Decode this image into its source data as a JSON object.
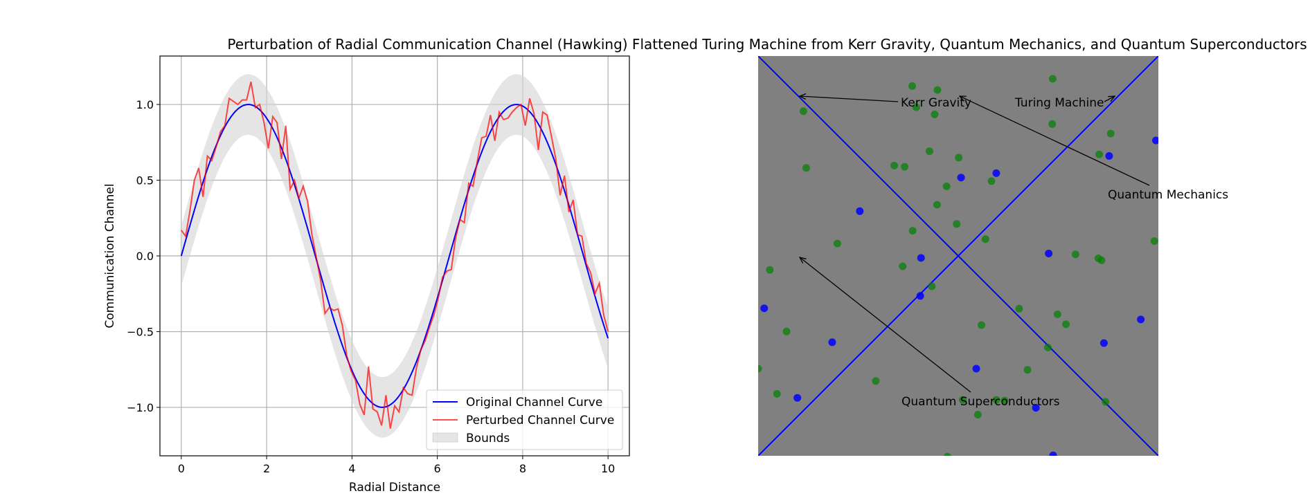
{
  "title": "Perturbation of Radial Communication Channel (Hawking) Flattened Turing Machine from Kerr Gravity, Quantum Mechanics, and Quantum Superconductors",
  "chart_data": [
    {
      "type": "line",
      "xlabel": "Radial Distance",
      "ylabel": "Communication Channel",
      "xlim": [
        -0.5,
        10.5
      ],
      "ylim": [
        -1.32,
        1.32
      ],
      "xticks": [
        0,
        2,
        4,
        6,
        8,
        10
      ],
      "yticks": [
        -1.0,
        -0.5,
        0.0,
        0.5,
        1.0
      ],
      "xtick_labels": [
        "0",
        "2",
        "4",
        "6",
        "8",
        "10"
      ],
      "ytick_labels": [
        "−1.0",
        "−0.5",
        "0.0",
        "0.5",
        "1.0"
      ],
      "grid": true,
      "legend": "lower-right",
      "series": [
        {
          "name": "Original Channel Curve",
          "function": "sin(x)",
          "x_range": [
            0,
            10
          ],
          "color": "#0000ff"
        },
        {
          "name": "Perturbed Channel Curve",
          "color": "#ff0000",
          "x_range": [
            0,
            10
          ],
          "values": [
            0.17,
            0.13,
            0.3,
            0.5,
            0.58,
            0.39,
            0.66,
            0.63,
            0.72,
            0.82,
            0.86,
            1.04,
            1.02,
            1.0,
            1.03,
            1.03,
            1.15,
            0.98,
            1.0,
            0.88,
            0.71,
            0.92,
            0.88,
            0.64,
            0.86,
            0.44,
            0.5,
            0.38,
            0.46,
            0.36,
            0.14,
            -0.01,
            -0.16,
            -0.38,
            -0.34,
            -0.36,
            -0.35,
            -0.46,
            -0.66,
            -0.76,
            -0.82,
            -0.98,
            -1.05,
            -0.73,
            -1.01,
            -1.03,
            -1.12,
            -0.92,
            -1.14,
            -0.99,
            -1.03,
            -0.87,
            -0.91,
            -0.92,
            -0.74,
            -0.62,
            -0.56,
            -0.47,
            -0.39,
            -0.28,
            -0.14,
            -0.1,
            -0.09,
            0.12,
            0.24,
            0.22,
            0.48,
            0.46,
            0.63,
            0.78,
            0.79,
            0.93,
            0.76,
            0.95,
            0.9,
            0.91,
            0.95,
            0.98,
            1.0,
            0.86,
            1.04,
            0.94,
            0.7,
            0.95,
            0.93,
            0.79,
            0.64,
            0.4,
            0.53,
            0.29,
            0.37,
            0.14,
            0.13,
            -0.05,
            -0.11,
            -0.25,
            -0.18,
            -0.39,
            -0.5
          ]
        },
        {
          "name": "Bounds",
          "type": "band",
          "lower": "sin(x) - 0.2",
          "upper": "sin(x) + 0.2",
          "x_range": [
            0,
            10
          ],
          "color": "#d3d3d3"
        }
      ]
    },
    {
      "type": "scatter",
      "xlim": [
        0,
        1
      ],
      "ylim": [
        0,
        1
      ],
      "axes": "off",
      "background": "#808080",
      "lines": [
        {
          "x": [
            0,
            0.5,
            1
          ],
          "y": [
            1,
            0.5,
            0
          ],
          "color": "#0000ff"
        },
        {
          "x": [
            0,
            0.5,
            1
          ],
          "y": [
            0,
            0.5,
            1
          ],
          "color": "#0000ff"
        }
      ],
      "series": [
        {
          "color": "#008000",
          "points": [
            [
              0.385,
              0.925
            ],
            [
              0.448,
              0.915
            ],
            [
              0.113,
              0.862
            ],
            [
              0.395,
              0.872
            ],
            [
              0.441,
              0.854
            ],
            [
              0.735,
              0.83
            ],
            [
              0.736,
              0.943
            ],
            [
              0.881,
              0.806
            ],
            [
              0.852,
              0.754
            ],
            [
              0.12,
              0.72
            ],
            [
              0.428,
              0.762
            ],
            [
              0.34,
              0.726
            ],
            [
              0.366,
              0.723
            ],
            [
              0.501,
              0.746
            ],
            [
              0.583,
              0.687
            ],
            [
              0.471,
              0.674
            ],
            [
              0.447,
              0.628
            ],
            [
              0.496,
              0.58
            ],
            [
              0.386,
              0.563
            ],
            [
              0.568,
              0.542
            ],
            [
              0.198,
              0.531
            ],
            [
              0.793,
              0.504
            ],
            [
              0.85,
              0.494
            ],
            [
              0.858,
              0.489
            ],
            [
              0.99,
              0.537
            ],
            [
              0.029,
              0.465
            ],
            [
              0.361,
              0.474
            ],
            [
              0.434,
              0.424
            ],
            [
              0.652,
              0.368
            ],
            [
              0.748,
              0.354
            ],
            [
              0.558,
              0.327
            ],
            [
              0.769,
              0.329
            ],
            [
              0.071,
              0.311
            ],
            [
              0.724,
              0.271
            ],
            [
              0.673,
              0.215
            ],
            [
              0.0,
              0.218
            ],
            [
              0.294,
              0.187
            ],
            [
              0.047,
              0.155
            ],
            [
              0.549,
              0.103
            ],
            [
              0.616,
              0.138
            ],
            [
              0.473,
              -0.002
            ],
            [
              0.868,
              0.135
            ],
            [
              0.595,
              0.14
            ],
            [
              0.511,
              0.14
            ]
          ]
        },
        {
          "color": "#0000ff",
          "points": [
            [
              0.994,
              0.789
            ],
            [
              0.877,
              0.75
            ],
            [
              0.595,
              0.707
            ],
            [
              0.507,
              0.696
            ],
            [
              0.254,
              0.612
            ],
            [
              0.726,
              0.506
            ],
            [
              0.407,
              0.495
            ],
            [
              0.405,
              0.4
            ],
            [
              0.015,
              0.369
            ],
            [
              0.956,
              0.341
            ],
            [
              0.185,
              0.284
            ],
            [
              0.864,
              0.282
            ],
            [
              0.545,
              0.218
            ],
            [
              0.098,
              0.145
            ],
            [
              0.694,
              0.12
            ],
            [
              0.737,
              0.001
            ]
          ]
        }
      ],
      "annotations": [
        {
          "text": "Kerr Gravity",
          "arrow_to": "upper-left"
        },
        {
          "text": "Turing Machine",
          "arrow_to": "upper-right"
        },
        {
          "text": "Quantum Mechanics",
          "arrow_to": "upper-center"
        },
        {
          "text": "Quantum Superconductors",
          "arrow_to": "center-left"
        }
      ]
    }
  ]
}
